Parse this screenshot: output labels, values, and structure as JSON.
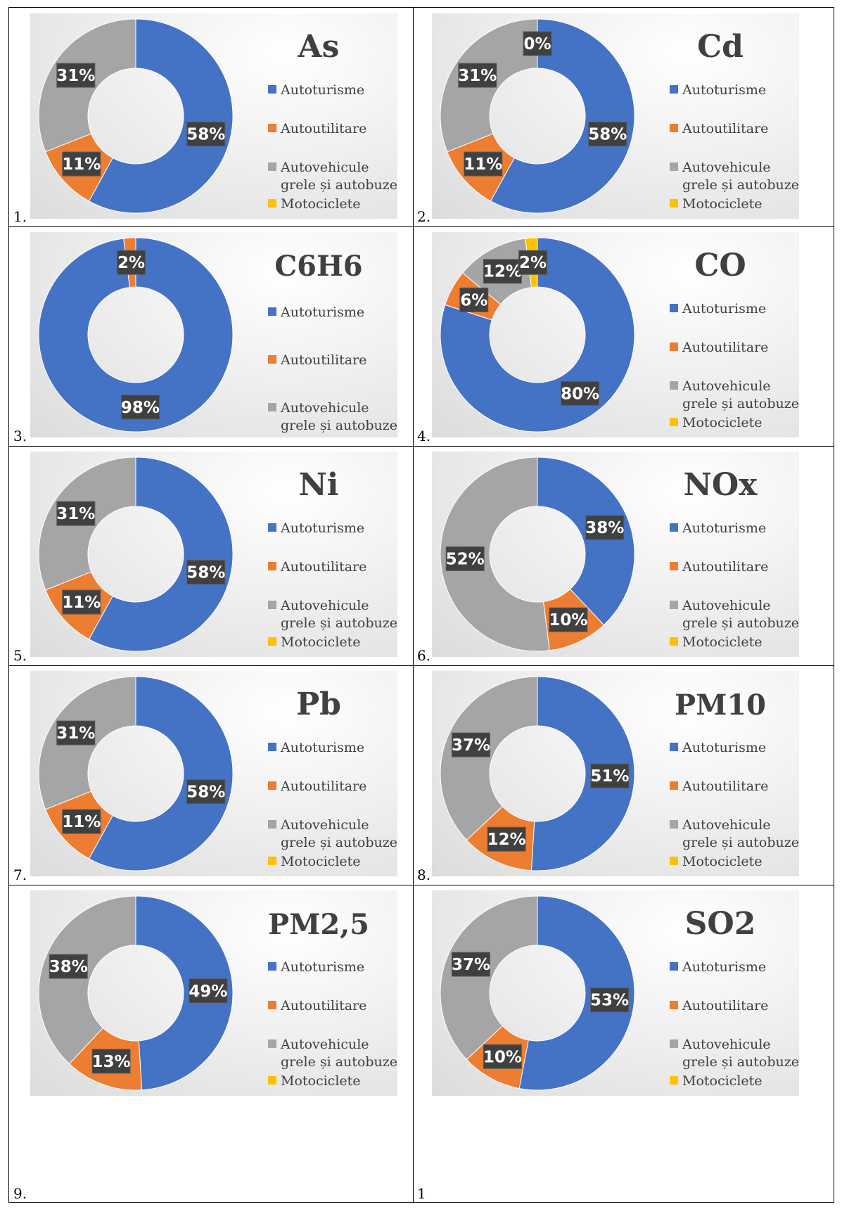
{
  "colors": {
    "Autoturisme": "#4472C4",
    "Autoutilitare": "#ED7D31",
    "Autovehicule grele și autobuze": "#A5A5A5",
    "Motociclete": "#FFC000"
  },
  "chart_data": [
    {
      "type": "pie",
      "variant": "donut",
      "number_label": "1.",
      "title": "As",
      "legend": [
        "Autoturisme",
        "Autoutilitare",
        "Autovehicule grele și autobuze",
        "Motociclete"
      ],
      "values": [
        58,
        11,
        31,
        0
      ],
      "labels": [
        "58%",
        "11%",
        "31%",
        ""
      ]
    },
    {
      "type": "pie",
      "variant": "donut",
      "number_label": "2.",
      "title": "Cd",
      "legend": [
        "Autoturisme",
        "Autoutilitare",
        "Autovehicule grele și autobuze",
        "Motociclete"
      ],
      "values": [
        58,
        11,
        31,
        0
      ],
      "labels": [
        "58%",
        "11%",
        "31%",
        "0%"
      ]
    },
    {
      "type": "pie",
      "variant": "donut",
      "number_label": "3.",
      "title": "C6H6",
      "legend": [
        "Autoturisme",
        "Autoutilitare",
        "Autovehicule grele și autobuze"
      ],
      "values": [
        98,
        2,
        0
      ],
      "labels": [
        "98%",
        "2%",
        ""
      ]
    },
    {
      "type": "pie",
      "variant": "donut",
      "number_label": "4.",
      "title": "CO",
      "legend": [
        "Autoturisme",
        "Autoutilitare",
        "Autovehicule grele și autobuze",
        "Motociclete"
      ],
      "values": [
        80,
        6,
        12,
        2
      ],
      "labels": [
        "80%",
        "6%",
        "12%",
        "2%"
      ]
    },
    {
      "type": "pie",
      "variant": "donut",
      "number_label": "5.",
      "title": "Ni",
      "legend": [
        "Autoturisme",
        "Autoutilitare",
        "Autovehicule grele și autobuze",
        "Motociclete"
      ],
      "values": [
        58,
        11,
        31,
        0
      ],
      "labels": [
        "58%",
        "11%",
        "31%",
        ""
      ]
    },
    {
      "type": "pie",
      "variant": "donut",
      "number_label": "6.",
      "title": "NOx",
      "legend": [
        "Autoturisme",
        "Autoutilitare",
        "Autovehicule grele și autobuze",
        "Motociclete"
      ],
      "values": [
        38,
        10,
        52,
        0
      ],
      "labels": [
        "38%",
        "10%",
        "52%",
        ""
      ]
    },
    {
      "type": "pie",
      "variant": "donut",
      "number_label": "7.",
      "title": "Pb",
      "legend": [
        "Autoturisme",
        "Autoutilitare",
        "Autovehicule grele și autobuze",
        "Motociclete"
      ],
      "values": [
        58,
        11,
        31,
        0
      ],
      "labels": [
        "58%",
        "11%",
        "31%",
        ""
      ]
    },
    {
      "type": "pie",
      "variant": "donut",
      "number_label": "8.",
      "title": "PM10",
      "legend": [
        "Autoturisme",
        "Autoutilitare",
        "Autovehicule grele și autobuze",
        "Motociclete"
      ],
      "values": [
        51,
        12,
        37,
        0
      ],
      "labels": [
        "51%",
        "12%",
        "37%",
        ""
      ]
    },
    {
      "type": "pie",
      "variant": "donut",
      "number_label": "9.",
      "title": "PM2,5",
      "legend": [
        "Autoturisme",
        "Autoutilitare",
        "Autovehicule grele și autobuze",
        "Motociclete"
      ],
      "values": [
        49,
        13,
        38,
        0
      ],
      "labels": [
        "49%",
        "13%",
        "38%",
        ""
      ]
    },
    {
      "type": "pie",
      "variant": "donut",
      "number_label": "1",
      "title": "SO2",
      "legend": [
        "Autoturisme",
        "Autoutilitare",
        "Autovehicule grele și autobuze",
        "Motociclete"
      ],
      "values": [
        53,
        10,
        37,
        0
      ],
      "labels": [
        "53%",
        "10%",
        "37%",
        ""
      ]
    }
  ]
}
